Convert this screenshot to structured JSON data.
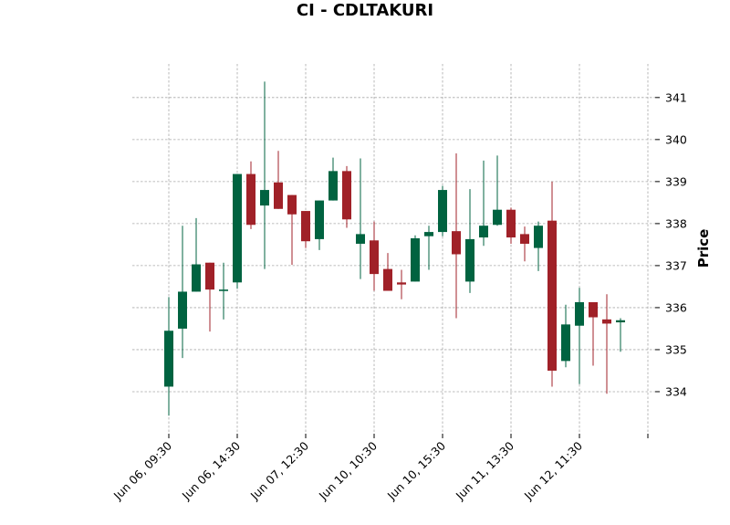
{
  "chart_data": {
    "type": "candlestick",
    "title": "CI - CDLTAKURI",
    "ylabel": "Price",
    "ylim": [
      333.0,
      341.8
    ],
    "yticks": [
      334,
      335,
      336,
      337,
      338,
      339,
      340,
      341
    ],
    "grid": true,
    "colors": {
      "up": "#006340",
      "down": "#a02128"
    },
    "xticks": [
      {
        "index": 0,
        "label": "Jun 06, 09:30"
      },
      {
        "index": 5,
        "label": "Jun 06, 14:30"
      },
      {
        "index": 10,
        "label": "Jun 07, 12:30"
      },
      {
        "index": 15,
        "label": "Jun 10, 10:30"
      },
      {
        "index": 20,
        "label": "Jun 10, 15:30"
      },
      {
        "index": 25,
        "label": "Jun 11, 13:30"
      },
      {
        "index": 30,
        "label": "Jun 12, 11:30"
      },
      {
        "index": 35,
        "label": ""
      }
    ],
    "candles": [
      {
        "o": 334.12,
        "h": 336.25,
        "l": 333.43,
        "c": 335.45
      },
      {
        "o": 335.5,
        "h": 337.95,
        "l": 334.8,
        "c": 336.38
      },
      {
        "o": 336.38,
        "h": 338.13,
        "l": 336.38,
        "c": 337.03
      },
      {
        "o": 337.07,
        "h": 337.07,
        "l": 335.43,
        "c": 336.43
      },
      {
        "o": 336.43,
        "h": 337.07,
        "l": 335.72,
        "c": 336.43
      },
      {
        "o": 336.6,
        "h": 339.18,
        "l": 336.45,
        "c": 339.18
      },
      {
        "o": 339.18,
        "h": 339.48,
        "l": 337.87,
        "c": 337.97
      },
      {
        "o": 338.43,
        "h": 341.38,
        "l": 336.92,
        "c": 338.8
      },
      {
        "o": 338.98,
        "h": 339.73,
        "l": 338.35,
        "c": 338.35
      },
      {
        "o": 338.68,
        "h": 338.68,
        "l": 337.02,
        "c": 338.22
      },
      {
        "o": 338.3,
        "h": 338.3,
        "l": 337.42,
        "c": 337.58
      },
      {
        "o": 337.63,
        "h": 338.55,
        "l": 337.37,
        "c": 338.55
      },
      {
        "o": 338.55,
        "h": 339.57,
        "l": 338.55,
        "c": 339.25
      },
      {
        "o": 339.25,
        "h": 339.37,
        "l": 337.9,
        "c": 338.1
      },
      {
        "o": 337.52,
        "h": 339.55,
        "l": 336.68,
        "c": 337.75
      },
      {
        "o": 337.6,
        "h": 338.05,
        "l": 336.4,
        "c": 336.8
      },
      {
        "o": 336.92,
        "h": 337.3,
        "l": 336.4,
        "c": 336.4
      },
      {
        "o": 336.6,
        "h": 336.9,
        "l": 336.2,
        "c": 336.55
      },
      {
        "o": 336.62,
        "h": 337.72,
        "l": 336.62,
        "c": 337.65
      },
      {
        "o": 337.7,
        "h": 337.95,
        "l": 336.9,
        "c": 337.8
      },
      {
        "o": 337.8,
        "h": 338.9,
        "l": 337.7,
        "c": 338.8
      },
      {
        "o": 337.82,
        "h": 339.67,
        "l": 335.75,
        "c": 337.27
      },
      {
        "o": 336.62,
        "h": 338.82,
        "l": 336.35,
        "c": 337.63
      },
      {
        "o": 337.67,
        "h": 339.5,
        "l": 337.47,
        "c": 337.95
      },
      {
        "o": 337.97,
        "h": 339.62,
        "l": 337.95,
        "c": 338.33
      },
      {
        "o": 338.33,
        "h": 338.38,
        "l": 337.52,
        "c": 337.67
      },
      {
        "o": 337.75,
        "h": 337.93,
        "l": 337.1,
        "c": 337.52
      },
      {
        "o": 337.42,
        "h": 338.05,
        "l": 336.87,
        "c": 337.95
      },
      {
        "o": 338.07,
        "h": 339.0,
        "l": 334.12,
        "c": 334.5
      },
      {
        "o": 334.73,
        "h": 336.07,
        "l": 334.58,
        "c": 335.6
      },
      {
        "o": 335.57,
        "h": 336.47,
        "l": 334.18,
        "c": 336.13
      },
      {
        "o": 336.13,
        "h": 336.13,
        "l": 334.62,
        "c": 335.77
      },
      {
        "o": 335.72,
        "h": 336.32,
        "l": 333.95,
        "c": 335.62
      },
      {
        "o": 335.65,
        "h": 335.75,
        "l": 334.95,
        "c": 335.7
      }
    ]
  }
}
